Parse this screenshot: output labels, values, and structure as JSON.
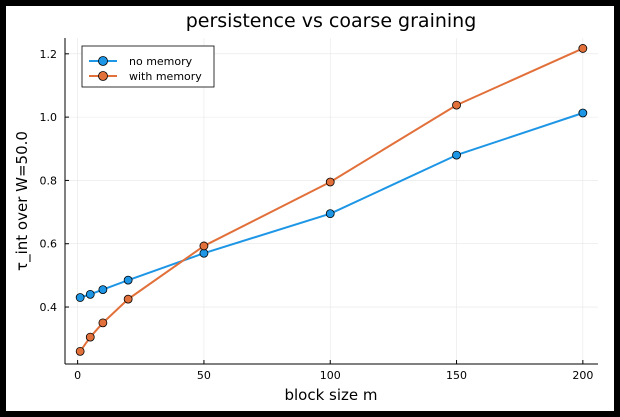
{
  "chart_data": {
    "type": "line",
    "title": "persistence vs coarse graining",
    "xlabel": "block size m",
    "ylabel": "τ_int over W=50.0",
    "xlim": [
      -5,
      206
    ],
    "ylim": [
      0.22,
      1.25
    ],
    "xticks": [
      0,
      50,
      100,
      150,
      200
    ],
    "yticks": [
      0.4,
      0.6,
      0.8,
      1.0,
      1.2
    ],
    "xtick_labels": [
      "0",
      "50",
      "100",
      "150",
      "200"
    ],
    "ytick_labels": [
      "0.4",
      "0.6",
      "0.8",
      "1.0",
      "1.2"
    ],
    "grid": true,
    "legend_position": "top-left",
    "x": [
      1,
      5,
      10,
      20,
      50,
      100,
      150,
      200
    ],
    "series": [
      {
        "name": "no memory",
        "color": "#1e96e6",
        "values": [
          0.43,
          0.44,
          0.455,
          0.485,
          0.57,
          0.695,
          0.88,
          1.013
        ]
      },
      {
        "name": "with memory",
        "color": "#e2703a",
        "values": [
          0.26,
          0.305,
          0.35,
          0.425,
          0.593,
          0.795,
          1.038,
          1.217
        ]
      }
    ]
  }
}
